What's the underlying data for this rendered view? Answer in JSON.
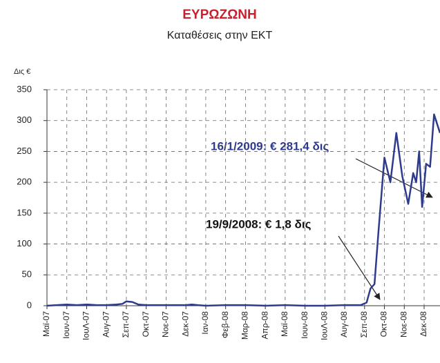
{
  "chart_data": {
    "type": "line",
    "title": "ΕΥΡΩΖΩΝΗ",
    "subtitle": "Καταθέσεις στην ΕΚΤ",
    "y_label": "Δις €",
    "annotations": [
      "16/1/2009: € 281,4 δις",
      "19/9/2008: € 1,8 δις"
    ],
    "xlim": [
      0,
      19.8
    ],
    "xticks": [
      {
        "value": 0,
        "label": "Μαϊ-07"
      },
      {
        "value": 1,
        "label": "Ιουν-07"
      },
      {
        "value": 2,
        "label": "ΙουΛ-07"
      },
      {
        "value": 3,
        "label": "Αυγ-07"
      },
      {
        "value": 4,
        "label": "Σεπ-07"
      },
      {
        "value": 5,
        "label": "Οκτ-07"
      },
      {
        "value": 6,
        "label": "Νοε-07"
      },
      {
        "value": 7,
        "label": "Δεκ-07"
      },
      {
        "value": 8,
        "label": "Ιαν-08"
      },
      {
        "value": 9,
        "label": "Φεβ-08"
      },
      {
        "value": 10,
        "label": "Μαρ-08"
      },
      {
        "value": 11,
        "label": "Απρ-08"
      },
      {
        "value": 12,
        "label": "Μαϊ-08"
      },
      {
        "value": 13,
        "label": "Ιουν-08"
      },
      {
        "value": 14,
        "label": "ΙουΛ-08"
      },
      {
        "value": 15,
        "label": "Αυγ-08"
      },
      {
        "value": 16,
        "label": "Σεπ-08"
      },
      {
        "value": 17,
        "label": "Οκτ-08"
      },
      {
        "value": 18,
        "label": "Νοε-08"
      },
      {
        "value": 19,
        "label": "Δεκ-08"
      }
    ],
    "ylim": [
      0,
      350
    ],
    "yticks": [
      0,
      50,
      100,
      150,
      200,
      250,
      300,
      350
    ],
    "grid": true,
    "series": [
      {
        "color": "#2e3a8c",
        "x": [
          0,
          0.5,
          1,
          1.5,
          2,
          2.5,
          3,
          3.5,
          3.8,
          4,
          4.3,
          4.6,
          5,
          6,
          7,
          7.3,
          7.6,
          8,
          9,
          10,
          11,
          12,
          13,
          14,
          15,
          15.8,
          16.1,
          16.3,
          16.5,
          16.7,
          17.0,
          17.3,
          17.6,
          17.9,
          18.2,
          18.45,
          18.6,
          18.75,
          18.9,
          19.1,
          19.3,
          19.5,
          19.8
        ],
        "values": [
          0,
          1,
          2,
          1,
          2,
          1,
          1,
          2,
          3,
          7,
          6,
          2,
          1,
          1,
          1,
          2,
          1,
          0,
          1,
          1,
          0,
          1,
          0,
          0,
          1,
          1,
          5,
          28,
          35,
          120,
          240,
          200,
          280,
          210,
          165,
          215,
          200,
          250,
          160,
          230,
          225,
          310,
          280
        ]
      }
    ]
  }
}
